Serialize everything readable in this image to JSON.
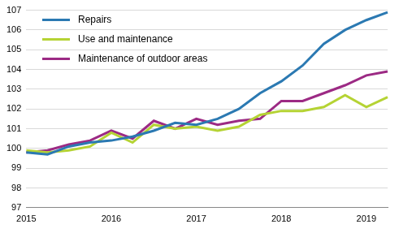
{
  "chart_data": {
    "type": "line",
    "categories": [
      "2015",
      null,
      null,
      null,
      "2016",
      null,
      null,
      null,
      "2017",
      null,
      null,
      null,
      "2018",
      null,
      null,
      null,
      "2019",
      null
    ],
    "series": [
      {
        "name": "Repairs",
        "color": "#2b79b2",
        "values": [
          99.8,
          99.7,
          100.1,
          100.3,
          100.4,
          100.6,
          100.9,
          101.3,
          101.2,
          101.5,
          102.0,
          102.8,
          103.4,
          104.2,
          105.3,
          106.0,
          106.5,
          106.9
        ]
      },
      {
        "name": "Use and maintenance",
        "color": "#b5d334",
        "values": [
          99.9,
          99.8,
          99.9,
          100.1,
          100.8,
          100.3,
          101.2,
          101.0,
          101.1,
          100.9,
          101.1,
          101.7,
          101.9,
          101.9,
          102.1,
          102.7,
          102.1,
          102.6
        ]
      },
      {
        "name": "Maintenance of outdoor areas",
        "color": "#9c2a84",
        "values": [
          99.8,
          99.9,
          100.2,
          100.4,
          100.9,
          100.5,
          101.4,
          101.0,
          101.5,
          101.2,
          101.4,
          101.5,
          102.4,
          102.4,
          102.8,
          103.2,
          103.7,
          103.9
        ]
      }
    ],
    "ylim": [
      97,
      107
    ],
    "yticks": [
      97,
      98,
      99,
      100,
      101,
      102,
      103,
      104,
      105,
      106,
      107
    ],
    "grid": true,
    "legend": "upper left"
  }
}
